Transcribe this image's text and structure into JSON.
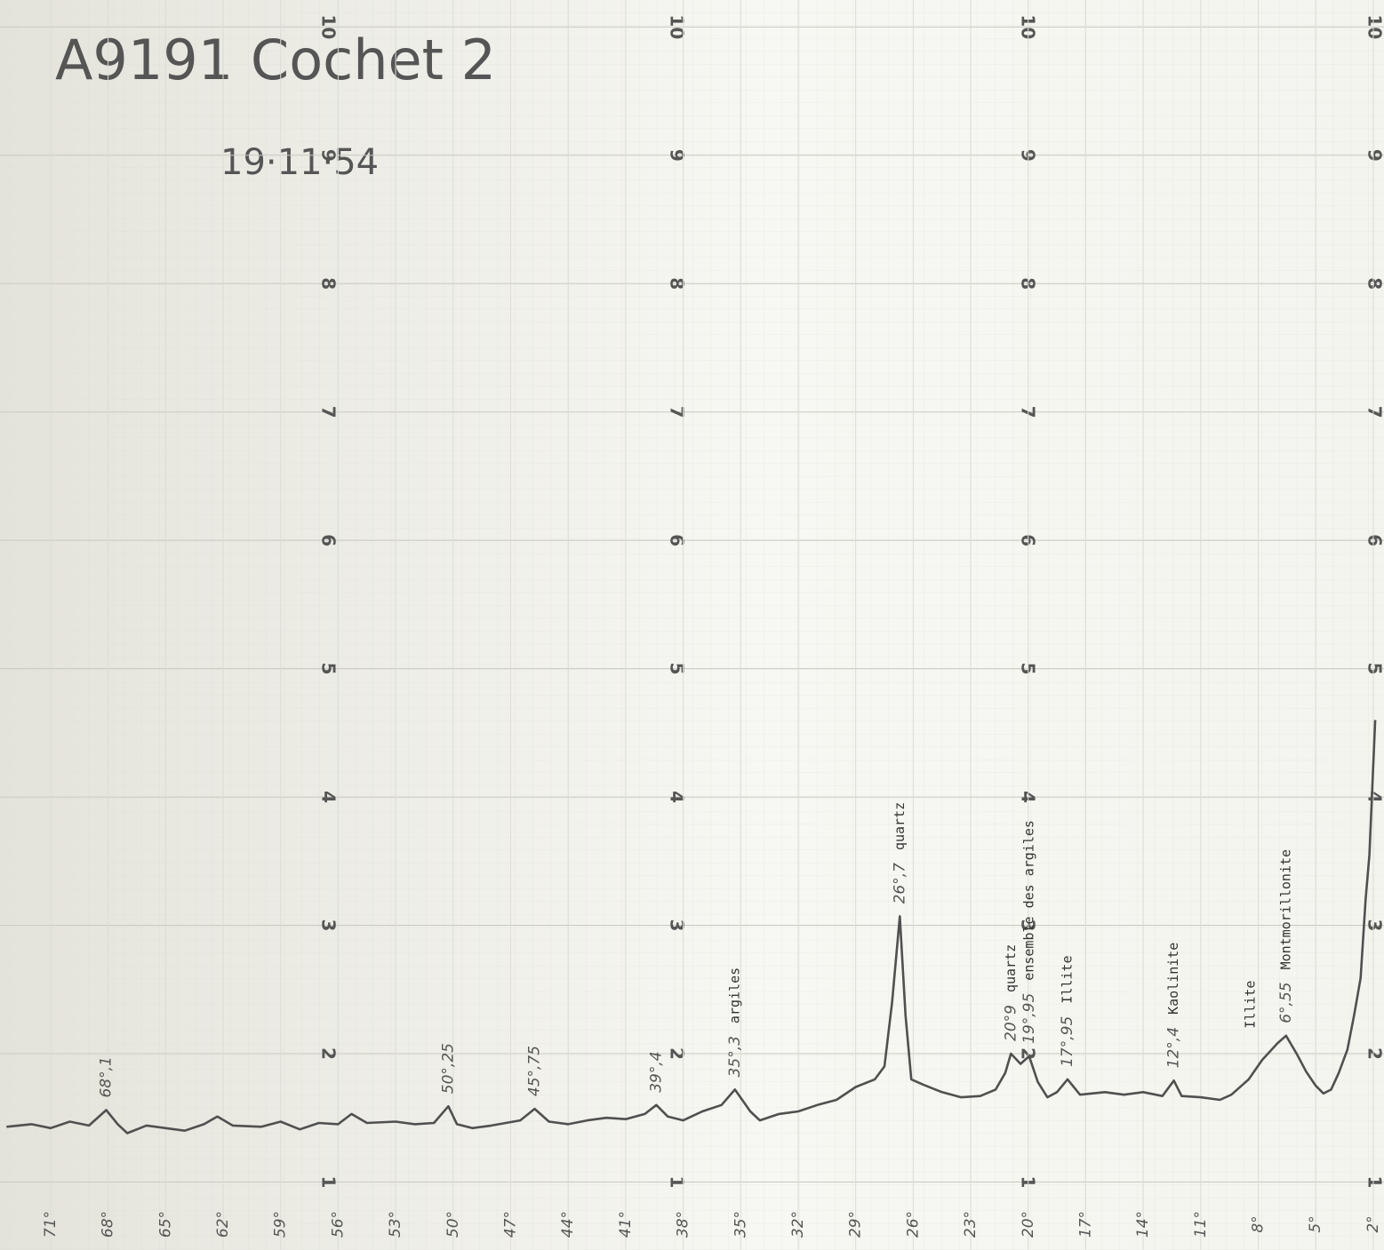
{
  "chart_data": {
    "type": "line",
    "title": "A9191 Cochet 2",
    "subtitle": "19·11·54",
    "xlim": [
      73.64,
      1.44
    ],
    "xticks": [
      {
        "value": 71,
        "label": "71°"
      },
      {
        "value": 68,
        "label": "68°"
      },
      {
        "value": 65,
        "label": "65°"
      },
      {
        "value": 62,
        "label": "62°"
      },
      {
        "value": 59,
        "label": "59°"
      },
      {
        "value": 56,
        "label": "56°"
      },
      {
        "value": 53,
        "label": "53°"
      },
      {
        "value": 50,
        "label": "50°"
      },
      {
        "value": 47,
        "label": "47°"
      },
      {
        "value": 44,
        "label": "44°"
      },
      {
        "value": 41,
        "label": "41°"
      },
      {
        "value": 38,
        "label": "38°"
      },
      {
        "value": 35,
        "label": "35°"
      },
      {
        "value": 32,
        "label": "32°"
      },
      {
        "value": 29,
        "label": "29°"
      },
      {
        "value": 26,
        "label": "26°"
      },
      {
        "value": 23,
        "label": "23°"
      },
      {
        "value": 20,
        "label": "20°"
      },
      {
        "value": 17,
        "label": "17°"
      },
      {
        "value": 14,
        "label": "14°"
      },
      {
        "value": 11,
        "label": "11°"
      },
      {
        "value": 8,
        "label": "8°"
      },
      {
        "value": 5,
        "label": "5°"
      },
      {
        "value": 2,
        "label": "2°"
      }
    ],
    "ylim": [
      0.47,
      10.21
    ],
    "yticks": [
      1,
      2,
      3,
      4,
      5,
      6,
      7,
      8,
      9,
      10
    ],
    "grid": true,
    "series": [
      {
        "color": "#505050",
        "x": [
          73.3,
          72,
          71,
          70,
          69,
          68.1,
          67.5,
          67,
          66,
          65,
          64,
          63,
          62.3,
          61.5,
          60,
          59,
          58,
          57,
          56,
          55.3,
          54.5,
          53,
          52,
          51,
          50.25,
          49.8,
          49,
          48,
          46.5,
          45.75,
          45,
          44,
          43,
          42,
          41,
          40,
          39.4,
          38.8,
          38,
          37,
          36,
          35.3,
          34.5,
          34,
          33,
          32,
          31,
          30,
          29,
          28,
          27.5,
          27.1,
          26.7,
          26.4,
          26.1,
          25.5,
          24.5,
          23.5,
          22.5,
          21.7,
          21.2,
          20.9,
          20.4,
          19.95,
          19.5,
          19,
          18.5,
          17.95,
          17.3,
          16,
          15,
          14,
          13,
          12.4,
          12,
          11,
          10,
          9.4,
          8.5,
          7.8,
          7,
          6.55,
          6,
          5.5,
          5,
          4.6,
          4.2,
          3.8,
          3.35,
          3.0,
          2.66,
          2.4,
          2.2,
          1.9
        ],
        "values": [
          1.43,
          1.45,
          1.42,
          1.47,
          1.44,
          1.56,
          1.45,
          1.38,
          1.44,
          1.42,
          1.4,
          1.45,
          1.51,
          1.44,
          1.43,
          1.47,
          1.41,
          1.46,
          1.45,
          1.53,
          1.46,
          1.47,
          1.45,
          1.46,
          1.59,
          1.45,
          1.42,
          1.44,
          1.48,
          1.57,
          1.47,
          1.45,
          1.48,
          1.5,
          1.49,
          1.53,
          1.6,
          1.51,
          1.48,
          1.55,
          1.6,
          1.72,
          1.55,
          1.48,
          1.53,
          1.55,
          1.6,
          1.64,
          1.74,
          1.8,
          1.9,
          2.4,
          3.07,
          2.3,
          1.8,
          1.76,
          1.7,
          1.66,
          1.67,
          1.72,
          1.85,
          2.0,
          1.92,
          1.98,
          1.78,
          1.66,
          1.7,
          1.8,
          1.68,
          1.7,
          1.68,
          1.7,
          1.67,
          1.79,
          1.67,
          1.66,
          1.64,
          1.68,
          1.8,
          1.95,
          2.08,
          2.14,
          2.0,
          1.86,
          1.75,
          1.69,
          1.72,
          1.85,
          2.03,
          2.3,
          2.59,
          3.2,
          3.55,
          4.6
        ]
      }
    ],
    "annotations": [
      {
        "x": 68.1,
        "label": "68°,1"
      },
      {
        "x": 50.25,
        "label": "50°,25"
      },
      {
        "x": 45.75,
        "label": "45°,75"
      },
      {
        "x": 39.4,
        "label": "39°,4"
      },
      {
        "x": 35.3,
        "label": "35°,3",
        "note": "argiles"
      },
      {
        "x": 26.7,
        "label": "26°,7",
        "note": "quartz"
      },
      {
        "x": 20.9,
        "label": "20°9",
        "note": "quartz"
      },
      {
        "x": 19.95,
        "label": "19°,95",
        "note": "ensemble des argiles"
      },
      {
        "x": 17.95,
        "label": "17°,95",
        "note": "Illite"
      },
      {
        "x": 12.4,
        "label": "12°,4",
        "note": "Kaolinite"
      },
      {
        "x": 8.4,
        "note": "Illite"
      },
      {
        "x": 6.55,
        "label": "6°,55",
        "note": "Montmorillonite"
      }
    ]
  }
}
